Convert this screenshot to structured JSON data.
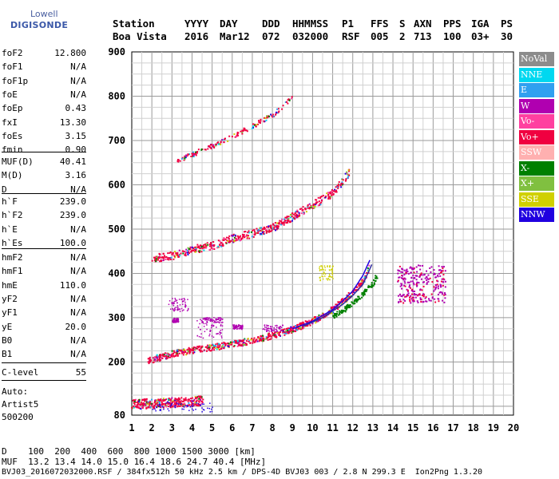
{
  "logo": {
    "line1": "Lowell",
    "line2": "DIGISONDE"
  },
  "header": {
    "row1": [
      "Station",
      "YYYY",
      "DAY",
      "DDD",
      "HHMMSS",
      "P1",
      "FFS",
      "S",
      "AXN",
      "PPS",
      "IGA",
      "PS"
    ],
    "row2": [
      "Boa Vista",
      "2016",
      "Mar12",
      "072",
      "032000",
      "RSF",
      "005",
      "2",
      "713",
      "100",
      "03+",
      "30"
    ]
  },
  "params": {
    "group1": [
      {
        "k": "foF2",
        "v": "12.800"
      },
      {
        "k": "foF1",
        "v": "N/A"
      },
      {
        "k": "foF1p",
        "v": "N/A"
      },
      {
        "k": "foE",
        "v": "N/A"
      },
      {
        "k": "foEp",
        "v": "0.43"
      },
      {
        "k": "fxI",
        "v": "13.30"
      },
      {
        "k": "foEs",
        "v": "3.15"
      },
      {
        "k": "fmin",
        "v": "0.90"
      }
    ],
    "group2": [
      {
        "k": "MUF(D)",
        "v": "40.41"
      },
      {
        "k": "M(D)",
        "v": "3.16"
      },
      {
        "k": "D",
        "v": "N/A"
      }
    ],
    "group3": [
      {
        "k": "h`F",
        "v": "239.0"
      },
      {
        "k": "h`F2",
        "v": "239.0"
      },
      {
        "k": "h`E",
        "v": "N/A"
      },
      {
        "k": "h`Es",
        "v": "100.0"
      }
    ],
    "group4": [
      {
        "k": "hmF2",
        "v": "N/A"
      },
      {
        "k": "hmF1",
        "v": "N/A"
      },
      {
        "k": "hmE",
        "v": "110.0"
      },
      {
        "k": "yF2",
        "v": "N/A"
      },
      {
        "k": "yF1",
        "v": "N/A"
      },
      {
        "k": "yE",
        "v": "20.0"
      },
      {
        "k": "B0",
        "v": "N/A"
      },
      {
        "k": "B1",
        "v": "N/A"
      }
    ],
    "group5": [
      {
        "k": "C-level",
        "v": "55"
      }
    ]
  },
  "autoscale": {
    "line1": "Auto:",
    "line2": "Artist5",
    "line3": "500200"
  },
  "legend": [
    {
      "label": "NoVal",
      "color": "#8c8c8c"
    },
    {
      "label": "NNE",
      "color": "#00d8f0"
    },
    {
      "label": "E",
      "color": "#30a0f0"
    },
    {
      "label": "W",
      "color": "#b000b0"
    },
    {
      "label": "Vo-",
      "color": "#ff40a0"
    },
    {
      "label": "Vo+",
      "color": "#f00040"
    },
    {
      "label": "SSW",
      "color": "#ffb0b0"
    },
    {
      "label": "X-",
      "color": "#008000"
    },
    {
      "label": "X+",
      "color": "#80c040"
    },
    {
      "label": "SSE",
      "color": "#d0d000"
    },
    {
      "label": "NNW",
      "color": "#2000e0"
    }
  ],
  "bottom": {
    "line1": "D    100  200  400  600  800 1000 1500 3000 [km]",
    "line2": "MUF  13.2 13.4 14.0 15.0 16.4 18.6 24.7 40.4 [MHz]",
    "line3": "BVJ03_2016072032000.RSF / 384fx512h 50 kHz 2.5 km / DPS-4D BVJ03 003 / 2.8 N 299.3 E  Ion2Png 1.3.20"
  },
  "chart_data": {
    "type": "scatter",
    "xlim": [
      1,
      20
    ],
    "ylim": [
      80,
      900
    ],
    "xticks": [
      1,
      2,
      3,
      4,
      5,
      6,
      7,
      8,
      9,
      10,
      11,
      12,
      13,
      14,
      15,
      16,
      17,
      18,
      19,
      20
    ],
    "yticks": [
      80,
      200,
      300,
      400,
      500,
      600,
      700,
      800,
      900
    ],
    "grid": true,
    "legend_position": "right",
    "traces": [
      {
        "name": "F2 O-trace",
        "color": "#f00040",
        "x": [
          1.8,
          3,
          4,
          5,
          6,
          7,
          8,
          9,
          10,
          11,
          11.5,
          12,
          12.4,
          12.7,
          12.8
        ],
        "y": [
          205,
          220,
          228,
          235,
          242,
          250,
          262,
          275,
          295,
          320,
          340,
          360,
          380,
          400,
          420
        ]
      },
      {
        "name": "F2 X-trace",
        "color": "#008000",
        "x": [
          11,
          11.5,
          12,
          12.5,
          13,
          13.2
        ],
        "y": [
          305,
          318,
          335,
          355,
          380,
          400
        ]
      },
      {
        "name": "2F echo",
        "color": "#f00040",
        "x": [
          2,
          3,
          4,
          5,
          6,
          7,
          8,
          9,
          10,
          11,
          11.8
        ],
        "y": [
          435,
          442,
          455,
          465,
          480,
          492,
          505,
          530,
          555,
          585,
          630
        ]
      },
      {
        "name": "3F echo",
        "color": "#f00040",
        "x": [
          3.2,
          4,
          5,
          6,
          7,
          8,
          9
        ],
        "y": [
          655,
          670,
          690,
          710,
          735,
          760,
          800
        ]
      },
      {
        "name": "Es echo",
        "color": "#f00040",
        "x": [
          1,
          1.5,
          2,
          2.5,
          3,
          3.5,
          4,
          4.5
        ],
        "y": [
          106,
          107,
          108,
          109,
          110,
          111,
          112,
          114
        ]
      },
      {
        "name": "spread cluster",
        "color": "#b000b0",
        "x": [
          14.3,
          14.6,
          15,
          15.3,
          15.6,
          16,
          16.3
        ],
        "y": [
          375,
          360,
          395,
          350,
          380,
          365,
          340
        ]
      }
    ]
  }
}
